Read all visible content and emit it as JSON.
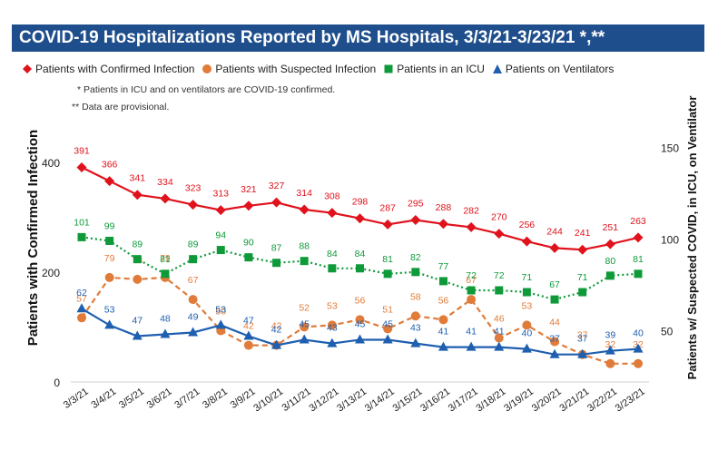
{
  "title": "COVID-19 Hospitalizations Reported by MS Hospitals, 3/3/21-3/23/21 *,**",
  "notes": [
    "* Patients in ICU and on ventilators are COVID-19 confirmed.",
    "** Data are provisional."
  ],
  "chart_data": {
    "type": "line",
    "title": "COVID-19 Hospitalizations Reported by MS Hospitals, 3/3/21-3/23/21 *,**",
    "categories": [
      "3/3/21",
      "3/4/21",
      "3/5/21",
      "3/6/21",
      "3/7/21",
      "3/8/21",
      "3/9/21",
      "3/10/21",
      "3/11/21",
      "3/12/21",
      "3/13/21",
      "3/14/21",
      "3/15/21",
      "3/16/21",
      "3/17/21",
      "3/18/21",
      "3/19/21",
      "3/20/21",
      "3/21/21",
      "3/22/21",
      "3/23/21"
    ],
    "ylabel_left": "Patients with Confirmed Infection",
    "ylabel_right": "Patients w/ Suspected COVID, in ICU, on Ventilator",
    "ylim_left": [
      0,
      440
    ],
    "yticks_left": [
      0,
      200,
      400
    ],
    "ylim_right": [
      22,
      162
    ],
    "yticks_right": [
      50,
      100,
      150
    ],
    "grid": false,
    "legend_position": "top",
    "series": [
      {
        "name": "Patients with Confirmed Infection",
        "axis": "left",
        "color": "#e0121c",
        "marker": "diamond",
        "dash": "solid",
        "values": [
          391,
          366,
          341,
          334,
          323,
          313,
          321,
          327,
          314,
          308,
          298,
          287,
          295,
          288,
          282,
          270,
          256,
          244,
          241,
          251,
          263
        ]
      },
      {
        "name": "Patients with Suspected Infection",
        "axis": "right",
        "color": "#e07b39",
        "marker": "circle",
        "dash": "dashed",
        "values": [
          57,
          79,
          78,
          79,
          67,
          50,
          42,
          42,
          52,
          53,
          56,
          51,
          58,
          56,
          67,
          46,
          53,
          44,
          37,
          32,
          32
        ]
      },
      {
        "name": "Patients in an ICU",
        "axis": "right",
        "color": "#0f9a3a",
        "marker": "square",
        "dash": "dotted",
        "values": [
          101,
          99,
          89,
          81,
          89,
          94,
          90,
          87,
          88,
          84,
          84,
          81,
          82,
          77,
          72,
          72,
          71,
          67,
          71,
          80,
          81
        ]
      },
      {
        "name": "Patients on Ventilators",
        "axis": "right",
        "color": "#1f5fb0",
        "marker": "triangle",
        "dash": "solid",
        "values": [
          62,
          53,
          47,
          48,
          49,
          53,
          47,
          42,
          45,
          43,
          45,
          45,
          43,
          41,
          41,
          41,
          40,
          37,
          37,
          39,
          40
        ]
      }
    ]
  }
}
